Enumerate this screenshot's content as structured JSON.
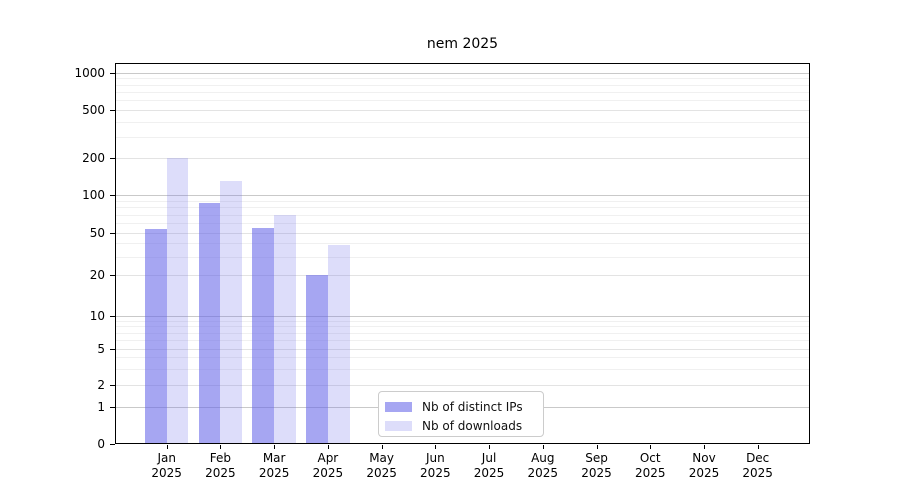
{
  "title": "nem 2025",
  "y_axis": {
    "ticks": [
      {
        "value": 0,
        "label": "0"
      },
      {
        "value": 1,
        "label": "1"
      },
      {
        "value": 2,
        "label": "2"
      },
      {
        "value": 5,
        "label": "5"
      },
      {
        "value": 10,
        "label": "10"
      },
      {
        "value": 20,
        "label": "20"
      },
      {
        "value": 50,
        "label": "50"
      },
      {
        "value": 100,
        "label": "100"
      },
      {
        "value": 200,
        "label": "200"
      },
      {
        "value": 500,
        "label": "500"
      },
      {
        "value": 1000,
        "label": "1000"
      }
    ]
  },
  "x_axis": {
    "months": [
      "Jan",
      "Feb",
      "Mar",
      "Apr",
      "May",
      "Jun",
      "Jul",
      "Aug",
      "Sep",
      "Oct",
      "Nov",
      "Dec"
    ],
    "year": "2025"
  },
  "legend": {
    "items": [
      {
        "label": "Nb of distinct IPs",
        "swatch": "dark"
      },
      {
        "label": "Nb of downloads",
        "swatch": "light"
      }
    ]
  },
  "colors": {
    "bar_dark": "rgba(99,99,233,0.57)",
    "bar_light": "rgba(99,99,233,0.22)",
    "grid_major": "#c9c9c9",
    "grid_labeled": "#e3e3e3",
    "grid_minor": "#f0f0f0",
    "axis": "#000000",
    "legend_border": "#cccccc"
  },
  "chart_data": {
    "type": "bar",
    "title": "nem 2025",
    "categories": [
      "Jan 2025",
      "Feb 2025",
      "Mar 2025",
      "Apr 2025",
      "May 2025",
      "Jun 2025",
      "Jul 2025",
      "Aug 2025",
      "Sep 2025",
      "Oct 2025",
      "Nov 2025",
      "Dec 2025"
    ],
    "series": [
      {
        "name": "Nb of distinct IPs",
        "values": [
          54,
          86,
          55,
          20,
          null,
          null,
          null,
          null,
          null,
          null,
          null,
          null
        ]
      },
      {
        "name": "Nb of downloads",
        "values": [
          200,
          130,
          70,
          39,
          null,
          null,
          null,
          null,
          null,
          null,
          null,
          null
        ]
      }
    ],
    "yscale": "log-like, ticks at 0,1,2,5,10,20,50,100,200,500,1000",
    "ylim": [
      0,
      1000
    ],
    "grid": "horizontal gridlines incl. log minors, decades darker",
    "legend_position": "inside bottom-center"
  }
}
